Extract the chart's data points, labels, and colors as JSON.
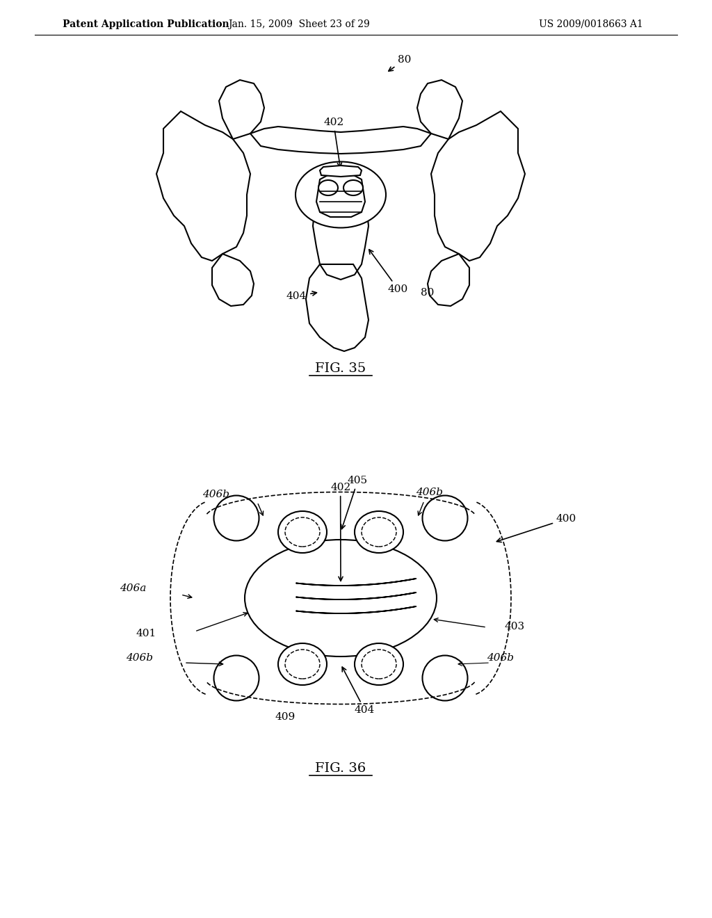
{
  "background_color": "#ffffff",
  "header_left": "Patent Application Publication",
  "header_mid": "Jan. 15, 2009  Sheet 23 of 29",
  "header_right": "US 2009/0018663 A1",
  "fig35_label": "FIG. 35",
  "fig36_label": "FIG. 36",
  "line_color": "#000000",
  "line_width": 1.5,
  "annotation_fontsize": 11,
  "header_fontsize": 10
}
